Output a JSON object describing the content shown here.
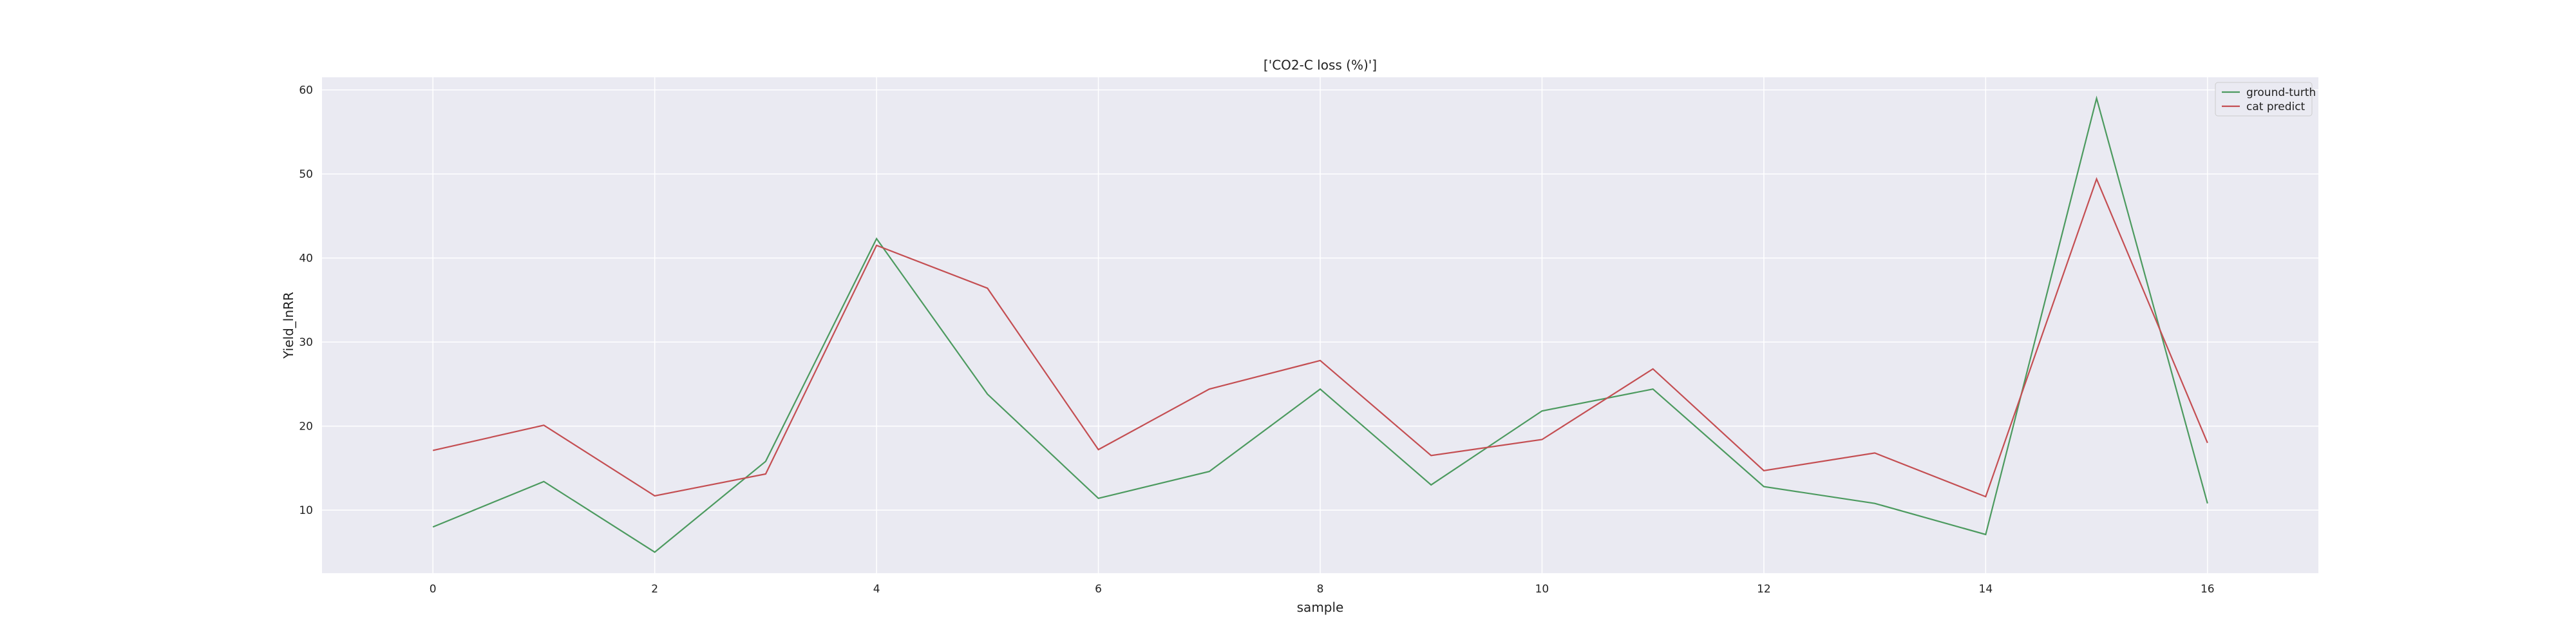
{
  "chart_data": {
    "type": "line",
    "title": "['CO2-C loss (%)']",
    "xlabel": "sample",
    "ylabel": "Yield_lnRR",
    "x": [
      0,
      1,
      2,
      3,
      4,
      5,
      6,
      7,
      8,
      9,
      10,
      11,
      12,
      13,
      14,
      15,
      16
    ],
    "xlim": [
      -1,
      17
    ],
    "ylim": [
      2.5,
      61.5
    ],
    "xticks": [
      0,
      2,
      4,
      6,
      8,
      10,
      12,
      14,
      16
    ],
    "yticks": [
      10,
      20,
      30,
      40,
      50,
      60
    ],
    "grid": true,
    "legend_position": "top-right",
    "series": [
      {
        "name": "ground-turth",
        "color": "#4c9a5f",
        "values": [
          8.0,
          13.4,
          5.0,
          15.8,
          42.3,
          23.8,
          11.4,
          14.6,
          24.4,
          13.0,
          21.8,
          24.4,
          12.8,
          10.8,
          7.1,
          59.0,
          10.8
        ]
      },
      {
        "name": "cat predict",
        "color": "#c44e52",
        "values": [
          17.1,
          20.1,
          11.7,
          14.3,
          41.5,
          36.4,
          17.2,
          24.4,
          27.8,
          16.5,
          18.4,
          26.8,
          14.7,
          16.8,
          11.6,
          49.4,
          18.0
        ]
      }
    ],
    "colors": {
      "plot_background": "#eaeaf2",
      "grid": "#ffffff"
    }
  }
}
